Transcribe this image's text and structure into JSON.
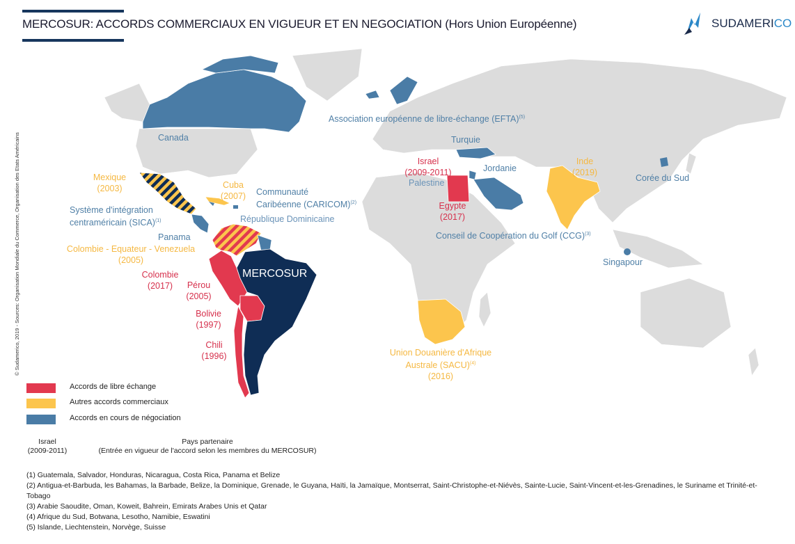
{
  "header": {
    "title": "MERCOSUR: ACCORDS COMMERCIAUX EN VIGUEUR ET EN NEGOCIATION (Hors Union Européenne)",
    "logo_main": "SUDAMERI",
    "logo_accent": "CO"
  },
  "credit": "© Sudamerico, 2019 - Sources: Organisation Mondiale du Commerce, Organisation des Etats Américains",
  "colors": {
    "free_trade": "#e2394f",
    "other_agreements": "#fcc54d",
    "in_negotiation": "#4a7ca6",
    "mercosur": "#0f2d55",
    "land": "#dcdcdc"
  },
  "labels": {
    "canada": "Canada",
    "mexique": "Mexique",
    "mexique_year": "(2003)",
    "cuba": "Cuba",
    "cuba_year": "(2007)",
    "caricom_1": "Communauté",
    "caricom_2": "Caribéenne (CARICOM)",
    "caricom_note": "(2)",
    "sica_1": "Système d'intégration",
    "sica_2": "centraméricain (SICA)",
    "sica_note": "(1)",
    "rep_dom": "République Dominicaine",
    "panama": "Panama",
    "cev": "Colombie - Equateur - Venezuela",
    "cev_year": "(2005)",
    "colombie": "Colombie",
    "colombie_year": "(2017)",
    "perou": "Pérou",
    "perou_year": "(2005)",
    "bolivie": "Bolivie",
    "bolivie_year": "(1997)",
    "chili": "Chili",
    "chili_year": "(1996)",
    "mercosur": "MERCOSUR",
    "efta": "Association européenne de libre-échange (EFTA)",
    "efta_note": "(5)",
    "turquie": "Turquie",
    "israel": "Israel",
    "israel_year": "(2009-2011)",
    "palestine": "Palestine",
    "jordanie": "Jordanie",
    "egypte": "Egypte",
    "egypte_year": "(2017)",
    "inde": "Inde",
    "inde_year": "(2019)",
    "coree": "Corée du Sud",
    "ccg": "Conseil de Coopération du Golf (CCG)",
    "ccg_note": "(3)",
    "singapour": "Singapour",
    "sacu_1": "Union Douanière d'Afrique",
    "sacu_2": "Australe (SACU)",
    "sacu_note": "(4)",
    "sacu_year": "(2016)"
  },
  "legend": [
    {
      "label": "Accords de libre échange",
      "color": "#e2394f"
    },
    {
      "label": "Autres accords commerciaux",
      "color": "#fcc54d"
    },
    {
      "label": "Accords en cours de négociation",
      "color": "#4a7ca6"
    }
  ],
  "key": {
    "example_country": "Israel",
    "example_years": "(2009-2011)",
    "partner_label": "Pays partenaire",
    "entry_label": "(Entrée en vigueur de l'accord selon les membres du MERCOSUR)"
  },
  "notes": [
    "(1) Guatemala, Salvador, Honduras, Nicaragua, Costa Rica, Panama et Belize",
    "(2) Antigua-et-Barbuda, les Bahamas, la Barbade, Belize, la Dominique, Grenade, le Guyana, Haïti, la Jamaïque, Montserrat, Saint-Christophe-et-Niévès, Sainte-Lucie, Saint-Vincent-et-les-Grenadines, le Suriname et Trinité-et-Tobago",
    "(3)  Arabie Saoudite, Oman, Koweit, Bahrein, Emirats Arabes Unis et Qatar",
    "(4) Afrique du Sud, Botwana, Lesotho, Namibie, Eswatini",
    "(5) Islande, Liechtenstein, Norvège, Suisse"
  ]
}
